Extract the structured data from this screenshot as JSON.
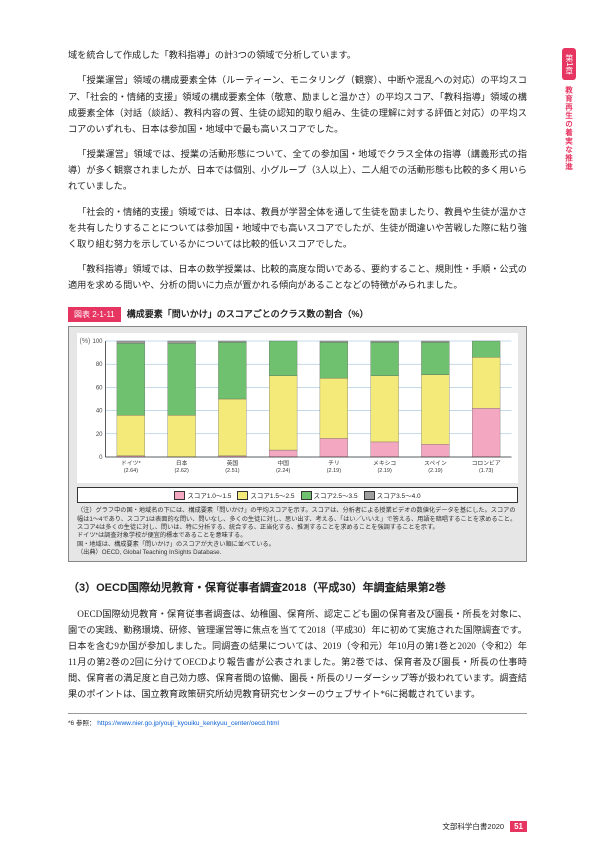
{
  "sidebar": {
    "chapter": "第1章",
    "caption": "教育再生の着実な推進"
  },
  "paragraphs": {
    "p1": "域を統合して作成した「教科指導」の計3つの領域で分析しています。",
    "p2": "「授業運営」領域の構成要素全体（ルーティーン、モニタリング（観察）、中断や混乱への対応）の平均スコア、「社会的・情緒的支援」領域の構成要素全体（敬意、励ましと温かさ）の平均スコア、「教科指導」領域の構成要素全体（対話（談話）、教科内容の質、生徒の認知的取り組み、生徒の理解に対する評価と対応）の平均スコアのいずれも、日本は参加国・地域中で最も高いスコアでした。",
    "p3": "「授業運営」領域では、授業の活動形態について、全ての参加国・地域でクラス全体の指導（講義形式の指導）が多く観察されましたが、日本では個別、小グループ（3人以上）、二人組での活動形態も比較的多く用いられていました。",
    "p4": "「社会的・情緒的支援」領域では、日本は、教員が学習全体を通して生徒を励ましたり、教員や生徒が温かさを共有したりすることについては参加国・地域中でも高いスコアでしたが、生徒が間違いや苦戦した際に粘り強く取り組む努力を示しているかについては比較的低いスコアでした。",
    "p5": "「教科指導」領域では、日本の数学授業は、比較的高度な問いである、要約すること、規則性・手順・公式の適用を求める問いや、分析の問いに力点が置かれる傾向があることなどの特徴がみられました。"
  },
  "chart": {
    "label": "図表 2-1-11",
    "title": "構成要素「問いかけ」のスコアごとのクラス数の割合（%）",
    "ylabel": "(%)",
    "ymax": 100,
    "ytick": 20,
    "background": "#e6e6e6",
    "panel_bg": "#ffffff",
    "gridline": "#8ab6d6",
    "bar_colors": {
      "s1": "#f4a7c0",
      "s2": "#f3ea7a",
      "s3": "#6fc06f",
      "s4": "#9d9d9d"
    },
    "categories": [
      {
        "name": "ドイツ*",
        "score": "(2.64)",
        "v": [
          1,
          35,
          62,
          2
        ]
      },
      {
        "name": "日本",
        "score": "(2.62)",
        "v": [
          0,
          36,
          62,
          2
        ]
      },
      {
        "name": "英国",
        "score": "(2.51)",
        "v": [
          1,
          49,
          49,
          1
        ]
      },
      {
        "name": "中国",
        "score": "(2.24)",
        "v": [
          6,
          64,
          30,
          0
        ]
      },
      {
        "name": "チリ",
        "score": "(2.19)",
        "v": [
          16,
          52,
          31,
          1
        ]
      },
      {
        "name": "メキシコ",
        "score": "(2.19)",
        "v": [
          13,
          57,
          29,
          1
        ]
      },
      {
        "name": "スペイン",
        "score": "(2.19)",
        "v": [
          11,
          60,
          28,
          1
        ]
      },
      {
        "name": "コロンビア",
        "score": "(1.73)",
        "v": [
          42,
          44,
          14,
          0
        ]
      }
    ],
    "legend": [
      {
        "label": "スコア1.0～1.5",
        "c": "#f4a7c0"
      },
      {
        "label": "スコア1.5～2.5",
        "c": "#f3ea7a"
      },
      {
        "label": "スコア2.5～3.5",
        "c": "#6fc06f"
      },
      {
        "label": "スコア3.5～4.0",
        "c": "#9d9d9d"
      }
    ],
    "note1": "（注）グラフ中の国・地域名の下には、構成要素「問いかけ」の平均スコアを示す。スコアは、分析者による授業ビデオの数値化データを基にした。スコアの幅は1～4であり、スコア1は表面的な問い、問いなし、多くの生徒に対し、思い出す、考える、「はい／いいえ」で答える、用語を暗唱することを求めること。スコア4は多くの生徒に対し、問いは、特に分析する、統合する、正当化する、推測することを求めることを強調することを示す。\nドイツ*は調査対象学校が便宜的標本であることを意味する。\n国・地域は、構成要素「問いかけ」のスコアが大きい順に並べている。",
    "source": "（出典）OECD, Global Teaching InSights Database."
  },
  "section3": {
    "heading": "（3）OECD国際幼児教育・保育従事者調査2018（平成30）年調査結果第2巻",
    "body": "　OECD国際幼児教育・保育従事者調査は、幼稚園、保育所、認定こども園の保育者及び園長・所長を対象に、園での実践、勤務環境、研修、管理運営等に焦点を当てて2018（平成30）年に初めて実施された国際調査です。日本を含む9か国が参加しました。同調査の結果については、2019（令和元）年10月の第1巻と2020（令和2）年11月の第2巻の2回に分けてOECDより報告書が公表されました。第2巻では、保育者及び園長・所長の仕事時間、保育者の満足度と自己効力感、保育者間の協働、園長・所長のリーダーシップ等が扱われています。調査結果のポイントは、国立教育政策研究所幼児教育研究センターのウェブサイト*6に掲載されています。"
  },
  "footnote": {
    "marker": "*6 参照：",
    "url": "https://www.nier.go.jp/youji_kyouiku_kenkyuu_center/oecd.html"
  },
  "footer": {
    "doc": "文部科学白書2020",
    "page": "51"
  }
}
